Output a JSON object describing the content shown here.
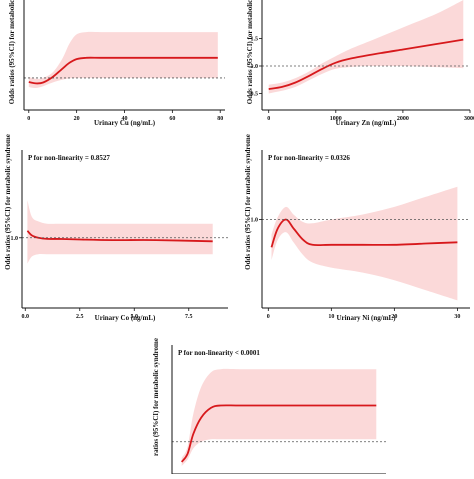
{
  "chart_data": [
    {
      "id": "cu",
      "type": "line",
      "p_text": "",
      "xlabel": "Urinary Cu (ng/mL)",
      "ylabel": "Odds ratios (95%CI) for metabolic",
      "xlim": [
        -2,
        82
      ],
      "ylim": [
        0.3,
        2.7
      ],
      "xticks": [
        0,
        20,
        40,
        60,
        80
      ],
      "yticks": [],
      "reference_y": 1.0,
      "series": [
        {
          "x": [
            0,
            3,
            6,
            10,
            14,
            17,
            20,
            24,
            30,
            40,
            50,
            60,
            70,
            79
          ],
          "y": [
            0.91,
            0.88,
            0.9,
            1.02,
            1.2,
            1.33,
            1.41,
            1.44,
            1.44,
            1.44,
            1.44,
            1.44,
            1.44,
            1.44
          ],
          "lower": [
            0.8,
            0.78,
            0.82,
            0.9,
            0.96,
            0.99,
            1.0,
            1.0,
            1.0,
            1.0,
            1.0,
            1.0,
            1.0,
            1.0
          ],
          "upper": [
            1.02,
            0.98,
            1.0,
            1.12,
            1.42,
            1.75,
            1.95,
            2.0,
            2.0,
            2.0,
            2.0,
            2.0,
            2.0,
            2.0
          ]
        }
      ]
    },
    {
      "id": "zn",
      "type": "line",
      "p_text": "",
      "xlabel": "Urinary Zn (ng/mL)",
      "ylabel": "Odds ratios (95%CI) for metabolic",
      "xlim": [
        -100,
        3000
      ],
      "ylim": [
        0.2,
        2.2
      ],
      "xticks": [
        0,
        1000,
        2000,
        3000
      ],
      "yticks": [
        0.5,
        1.0,
        1.5
      ],
      "reference_y": 1.0,
      "series": [
        {
          "x": [
            0,
            200,
            400,
            600,
            800,
            1000,
            1200,
            1500,
            2000,
            2500,
            2900
          ],
          "y": [
            0.58,
            0.62,
            0.7,
            0.82,
            0.95,
            1.06,
            1.13,
            1.2,
            1.3,
            1.4,
            1.48
          ],
          "lower": [
            0.5,
            0.55,
            0.62,
            0.74,
            0.86,
            0.95,
            0.98,
            1.0,
            1.0,
            0.98,
            0.96
          ],
          "upper": [
            0.66,
            0.7,
            0.78,
            0.9,
            1.05,
            1.18,
            1.3,
            1.45,
            1.7,
            1.95,
            2.2
          ]
        }
      ]
    },
    {
      "id": "co",
      "type": "line",
      "p_text": "P for non-linearity = 0.8527",
      "xlabel": "Urinary Co (ng/mL)",
      "ylabel": "Odds ratios (95%CI) for metabolic syndrome",
      "xlim": [
        -0.15,
        9.3
      ],
      "ylim": [
        0.4,
        1.75
      ],
      "xticks": [
        0.0,
        2.5,
        5.0,
        7.5
      ],
      "yticks": [
        1.0
      ],
      "reference_y": 1.0,
      "series": [
        {
          "x": [
            0.1,
            0.3,
            0.6,
            1.0,
            1.5,
            2.5,
            4,
            6,
            8.6
          ],
          "y": [
            1.06,
            1.02,
            1.0,
            0.99,
            0.99,
            0.985,
            0.98,
            0.98,
            0.97
          ],
          "lower": [
            0.78,
            0.84,
            0.86,
            0.86,
            0.86,
            0.86,
            0.86,
            0.86,
            0.86
          ],
          "upper": [
            1.32,
            1.18,
            1.14,
            1.12,
            1.12,
            1.12,
            1.12,
            1.12,
            1.12
          ]
        }
      ]
    },
    {
      "id": "ni",
      "type": "line",
      "p_text": "P for non-linearity = 0.0326",
      "xlabel": "Urinary Ni (ng/mL)",
      "ylabel": "Odds ratios (95%CI) for metabolic syndrome",
      "xlim": [
        -1,
        32
      ],
      "ylim": [
        0.3,
        1.55
      ],
      "xticks": [
        0,
        10,
        20,
        30
      ],
      "yticks": [
        1.0
      ],
      "reference_y": 1.0,
      "series": [
        {
          "x": [
            0.5,
            1.5,
            2.8,
            4,
            5.5,
            7,
            10,
            15,
            20,
            25,
            30
          ],
          "y": [
            0.78,
            0.93,
            1.0,
            0.93,
            0.84,
            0.8,
            0.8,
            0.8,
            0.8,
            0.81,
            0.82
          ],
          "lower": [
            0.68,
            0.84,
            0.9,
            0.82,
            0.72,
            0.66,
            0.62,
            0.58,
            0.52,
            0.44,
            0.36
          ],
          "upper": [
            0.88,
            1.02,
            1.1,
            1.04,
            0.98,
            0.97,
            1.0,
            1.04,
            1.1,
            1.18,
            1.26
          ]
        }
      ]
    },
    {
      "id": "last",
      "type": "line",
      "p_text": "P for non-linearity < 0.0001",
      "xlabel": "",
      "ylabel": "ratios (95%CI) for metabolic syndrome",
      "xlim": [
        -0.5,
        10.5
      ],
      "ylim": [
        0.6,
        2.2
      ],
      "xticks": [],
      "yticks": [],
      "reference_y": 1.0,
      "series": [
        {
          "x": [
            0,
            0.3,
            0.6,
            1.0,
            1.5,
            2,
            3,
            5,
            7,
            10
          ],
          "y": [
            0.75,
            0.85,
            1.1,
            1.3,
            1.42,
            1.45,
            1.45,
            1.45,
            1.45,
            1.45
          ],
          "lower": [
            0.7,
            0.78,
            0.92,
            1.0,
            1.03,
            1.03,
            1.03,
            1.03,
            1.03,
            1.03
          ],
          "upper": [
            0.8,
            0.94,
            1.35,
            1.68,
            1.86,
            1.9,
            1.9,
            1.9,
            1.9,
            1.9
          ]
        }
      ]
    }
  ],
  "colors": {
    "line": "#d7191c",
    "band": "#fbd9d9",
    "reference": "#555555",
    "axis": "#111111"
  }
}
